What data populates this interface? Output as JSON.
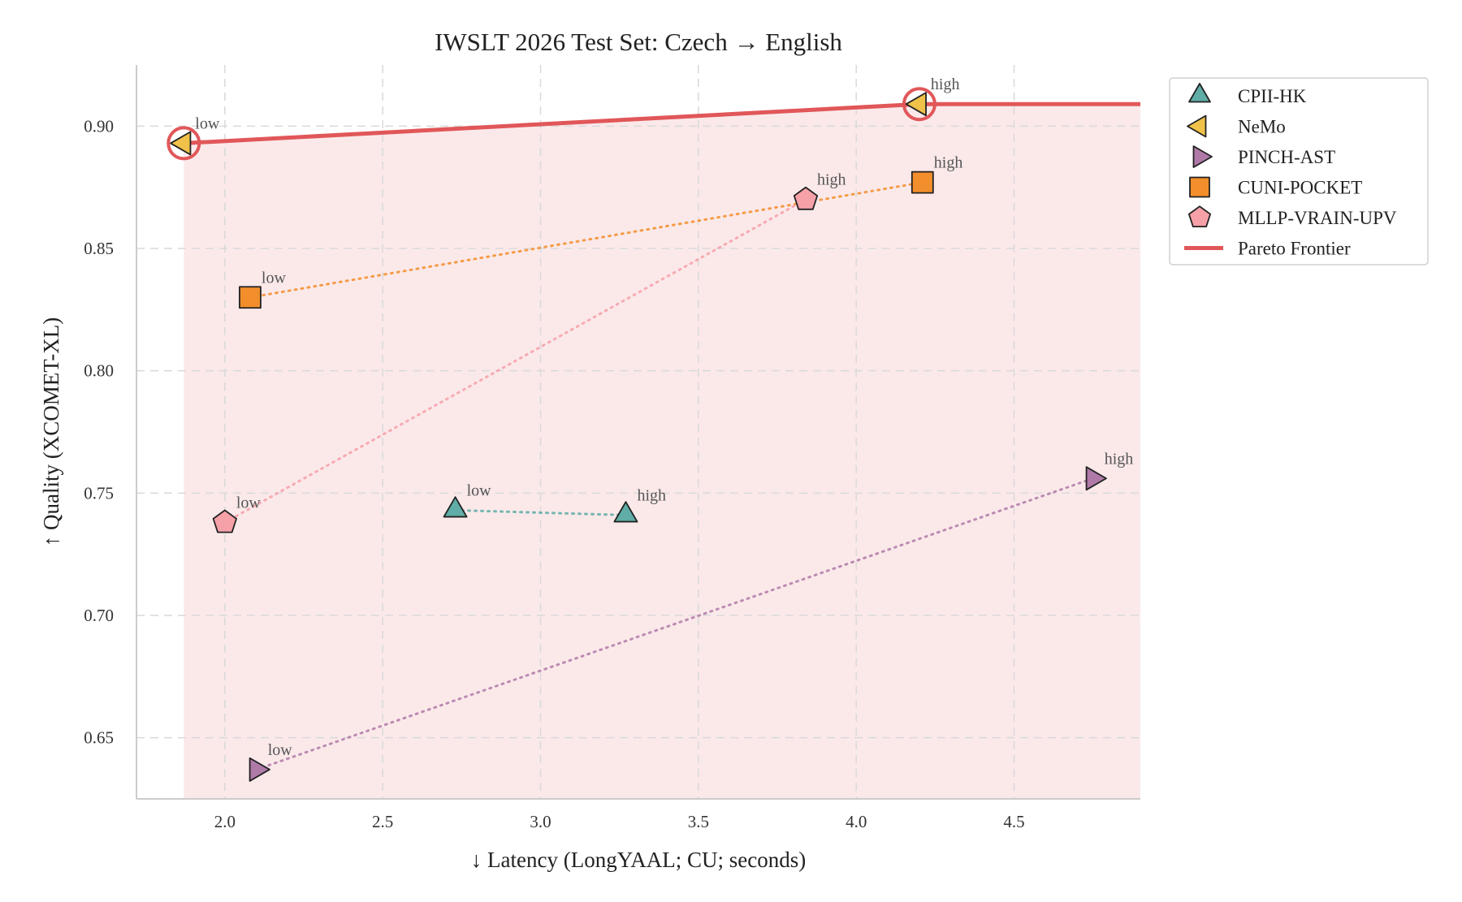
{
  "chart_data": {
    "type": "scatter",
    "title": "IWSLT 2026 Test Set: Czech → English",
    "xlabel": "↓ Latency (LongYAAL; CU; seconds)",
    "ylabel": "↑ Quality (XCOMET-XL)",
    "xlim": [
      1.72,
      4.9
    ],
    "ylim": [
      0.625,
      0.925
    ],
    "xticks": [
      2.0,
      2.5,
      3.0,
      3.5,
      4.0,
      4.5
    ],
    "xtick_labels": [
      "2.0",
      "2.5",
      "3.0",
      "3.5",
      "4.0",
      "4.5"
    ],
    "yticks": [
      0.65,
      0.7,
      0.75,
      0.8,
      0.85,
      0.9
    ],
    "ytick_labels": [
      "0.65",
      "0.70",
      "0.75",
      "0.80",
      "0.85",
      "0.90"
    ],
    "grid": true,
    "legend_position": "outside-top-right",
    "series": [
      {
        "name": "CPII-HK",
        "marker": "triangle-up",
        "color": "#5fada6",
        "points": [
          {
            "x": 2.73,
            "y": 0.743,
            "label": "low"
          },
          {
            "x": 3.27,
            "y": 0.741,
            "label": "high"
          }
        ]
      },
      {
        "name": "NeMo",
        "marker": "triangle-left",
        "color": "#f0c24a",
        "points": [
          {
            "x": 1.87,
            "y": 0.893,
            "label": "low"
          },
          {
            "x": 4.2,
            "y": 0.909,
            "label": "high"
          }
        ]
      },
      {
        "name": "PINCH-AST",
        "marker": "triangle-right",
        "color": "#b07aa8",
        "points": [
          {
            "x": 2.1,
            "y": 0.637,
            "label": "low"
          },
          {
            "x": 4.75,
            "y": 0.756,
            "label": "high"
          }
        ]
      },
      {
        "name": "CUNI-POCKET",
        "marker": "square",
        "color": "#f28e2b",
        "points": [
          {
            "x": 2.08,
            "y": 0.83,
            "label": "low"
          },
          {
            "x": 4.21,
            "y": 0.877,
            "label": "high"
          }
        ]
      },
      {
        "name": "MLLP-VRAIN-UPV",
        "marker": "pentagon",
        "color": "#f6a0a8",
        "points": [
          {
            "x": 2.0,
            "y": 0.738,
            "label": "low"
          },
          {
            "x": 3.84,
            "y": 0.87,
            "label": "high"
          }
        ]
      }
    ],
    "pareto_frontier": {
      "name": "Pareto Frontier",
      "color": "#e15759",
      "points": [
        {
          "x": 1.87,
          "y": 0.893
        },
        {
          "x": 4.2,
          "y": 0.909
        },
        {
          "x": 4.9,
          "y": 0.909
        }
      ],
      "highlighted": [
        {
          "x": 1.87,
          "y": 0.893
        },
        {
          "x": 4.2,
          "y": 0.909
        }
      ]
    }
  }
}
